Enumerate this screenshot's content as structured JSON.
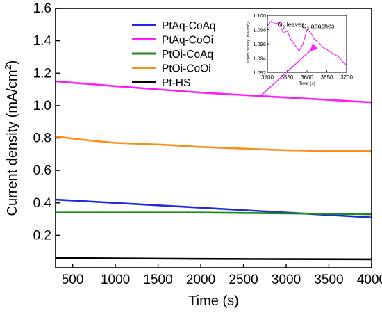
{
  "chart_data": {
    "type": "line",
    "xlabel": "Time (s)",
    "ylabel": "Current density (mA/cm",
    "ylabel_sup": "2",
    "ylabel_close": ")",
    "xlim": [
      300,
      4000
    ],
    "ylim": [
      0.0,
      1.6
    ],
    "x_ticks": [
      500,
      1000,
      1500,
      2000,
      2500,
      3000,
      3500,
      4000
    ],
    "x_tick_labels": [
      "500",
      "1000",
      "1500",
      "2000",
      "2500",
      "3000",
      "3500",
      "4000"
    ],
    "y_ticks": [
      0.2,
      0.4,
      0.6,
      0.8,
      1.0,
      1.2,
      1.4,
      1.6
    ],
    "y_tick_labels": [
      "0.2",
      "0.4",
      "0.6",
      "0.8",
      "1.0",
      "1.2",
      "1.4",
      "1.6"
    ],
    "grid": false,
    "legend_position": "top-left",
    "series": [
      {
        "name": "PtAq-CoAq",
        "color": "#1f2be0",
        "x": [
          300,
          1000,
          2000,
          3000,
          4000
        ],
        "y": [
          0.42,
          0.4,
          0.37,
          0.34,
          0.31
        ]
      },
      {
        "name": "PtAq-CoOi",
        "color": "#ff1aff",
        "x": [
          300,
          1000,
          2000,
          3000,
          4000
        ],
        "y": [
          1.15,
          1.12,
          1.08,
          1.05,
          1.02
        ]
      },
      {
        "name": "PtOi-CoAq",
        "color": "#1a8a1a",
        "x": [
          300,
          1000,
          2000,
          3000,
          4000
        ],
        "y": [
          0.34,
          0.34,
          0.34,
          0.335,
          0.33
        ]
      },
      {
        "name": "PtOi-CoOi",
        "color": "#ff8c1a",
        "x": [
          300,
          600,
          1000,
          1500,
          2000,
          2500,
          3000,
          3500,
          4000
        ],
        "y": [
          0.81,
          0.79,
          0.77,
          0.76,
          0.745,
          0.735,
          0.725,
          0.72,
          0.72
        ]
      },
      {
        "name": "Pt-HS",
        "color": "#000000",
        "x": [
          300,
          1000,
          2000,
          3000,
          4000
        ],
        "y": [
          0.06,
          0.058,
          0.055,
          0.053,
          0.052
        ]
      }
    ],
    "inset": {
      "type": "line",
      "xlabel": "Time (s)",
      "ylabel": "Current density (mA/cm",
      "ylabel_sup": "2",
      "ylabel_close": ")",
      "xlim": [
        3500,
        3700
      ],
      "ylim": [
        1.092,
        1.1
      ],
      "x_ticks": [
        3500,
        3550,
        3600,
        3650,
        3700
      ],
      "x_tick_labels": [
        "3500",
        "3550",
        "3600",
        "3650",
        "3700"
      ],
      "y_ticks": [
        1.092,
        1.094,
        1.096,
        1.098,
        1.1
      ],
      "y_tick_labels": [
        "1.092",
        "1.094",
        "1.096",
        "1.098",
        "1.100"
      ],
      "series_color": "#ff1aff",
      "x": [
        3500,
        3510,
        3520,
        3530,
        3540,
        3550,
        3560,
        3570,
        3580,
        3590,
        3600,
        3610,
        3620,
        3630,
        3640,
        3650,
        3660,
        3670,
        3680,
        3690,
        3700
      ],
      "y": [
        1.0985,
        1.0992,
        1.0988,
        1.099,
        1.0975,
        1.0978,
        1.0965,
        1.0958,
        1.095,
        1.096,
        1.098,
        1.0975,
        1.0965,
        1.0962,
        1.0955,
        1.0952,
        1.0948,
        1.0945,
        1.0942,
        1.0935,
        1.093
      ],
      "annotations": [
        {
          "text_main": "O",
          "text_sub": "2",
          "text_rest": " leaves",
          "x": 3560,
          "y": 1.0984
        },
        {
          "text_main": "O",
          "text_sub": "2",
          "text_rest": " attaches",
          "x": 3628,
          "y": 1.0982
        }
      ]
    }
  }
}
